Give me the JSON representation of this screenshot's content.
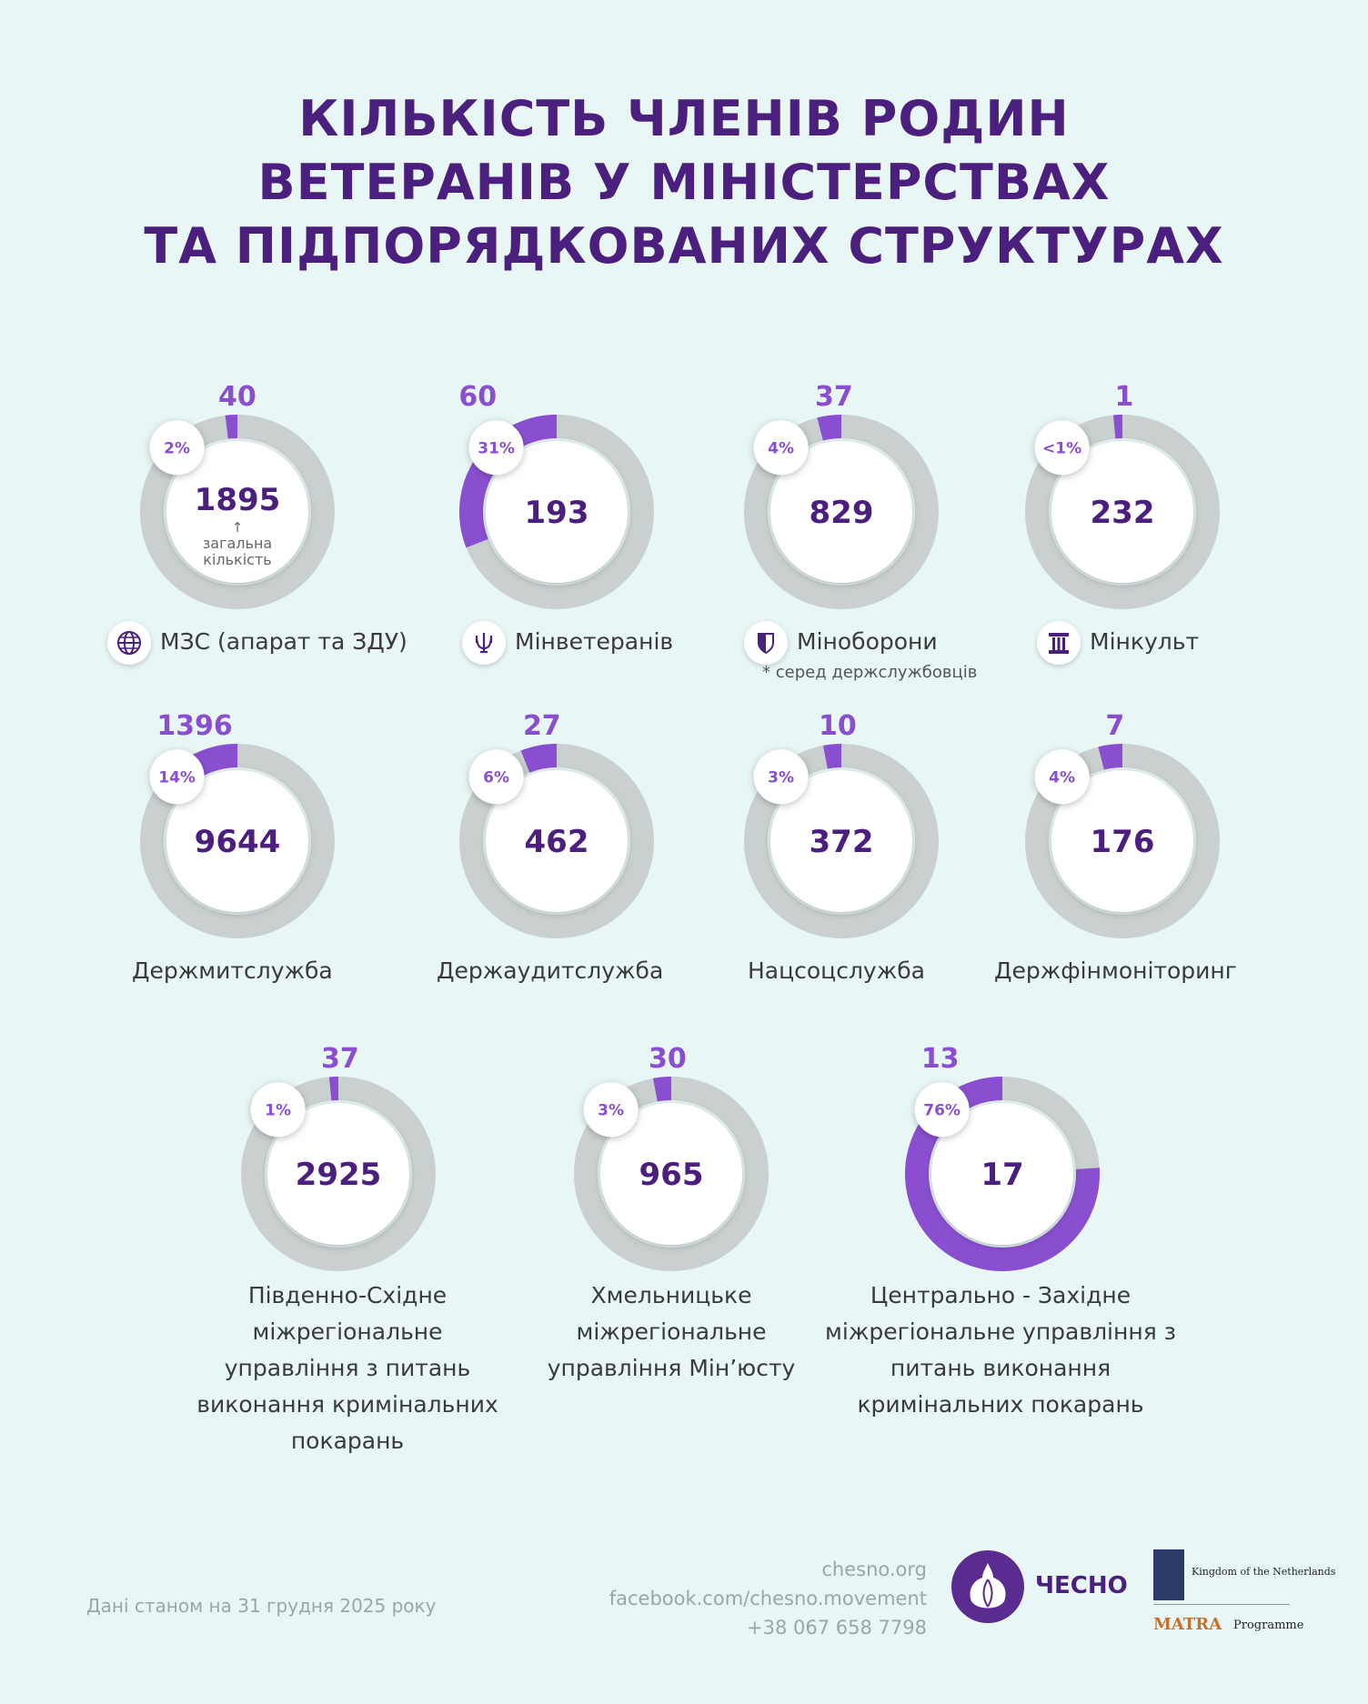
{
  "title": {
    "line1": "КІЛЬКІСТЬ ЧЛЕНІВ РОДИН",
    "line2": "ВЕТЕРАНІВ У МІНІСТЕРСТВАХ",
    "line3": "ТА ПІДПОРЯДКОВАНИХ СТРУКТУРАХ"
  },
  "colors": {
    "accent": "#8a4fd0",
    "track": "#c9d0cf",
    "dark": "#4b1f7d",
    "background": "#e8f6f5"
  },
  "center_note": "загальна кількість",
  "total_arrow": "↑",
  "chart_data": {
    "type": "donut",
    "title": "КІЛЬКІСТЬ ЧЛЕНІВ РОДИН ВЕТЕРАНІВ У МІНІСТЕРСТВАХ ТА ПІДПОРЯДКОВАНИХ СТРУКТУРАХ",
    "series": [
      {
        "name": "МЗС (апарат та ЗДУ)",
        "total": 1895,
        "value": 40,
        "percent": 2,
        "percent_label": "2%",
        "icon": "globe-icon"
      },
      {
        "name": "Мінветеранів",
        "total": 193,
        "value": 60,
        "percent": 31,
        "percent_label": "31%",
        "icon": "trident-icon"
      },
      {
        "name": "Міноборони",
        "total": 829,
        "value": 37,
        "percent": 4,
        "percent_label": "4%",
        "icon": "shield-icon",
        "note": "* серед держслужбовців"
      },
      {
        "name": "Мінкульт",
        "total": 232,
        "value": 1,
        "percent": 0.4,
        "percent_label": "<1%",
        "icon": "column-icon"
      },
      {
        "name": "Держмитслужба",
        "total": 9644,
        "value": 1396,
        "percent": 14,
        "percent_label": "14%"
      },
      {
        "name": "Держаудитслужба",
        "total": 462,
        "value": 27,
        "percent": 6,
        "percent_label": "6%"
      },
      {
        "name": "Нацсоцслужба",
        "total": 372,
        "value": 10,
        "percent": 3,
        "percent_label": "3%"
      },
      {
        "name": "Держфінмоніторинг",
        "total": 176,
        "value": 7,
        "percent": 4,
        "percent_label": "4%"
      },
      {
        "name": "Південно-Східне міжрегіональне управління з питань виконання кримінальних покарань",
        "name_lines": [
          "Південно-Східне",
          "міжрегіональне",
          "управління з питань",
          "виконання кримінальних",
          "покарань"
        ],
        "total": 2925,
        "value": 37,
        "percent": 1,
        "percent_label": "1%"
      },
      {
        "name": "Хмельницьке міжрегіональне управління Мін’юсту",
        "name_lines": [
          "Хмельницьке",
          "міжрегіональне",
          "управління Мін’юсту"
        ],
        "total": 965,
        "value": 30,
        "percent": 3,
        "percent_label": "3%"
      },
      {
        "name": "Центрально - Західне міжрегіональне управління з питань виконання кримінальних покарань",
        "name_lines": [
          "Центрально - Західне",
          "міжрегіональне управління з",
          "питань виконання",
          "кримінальних покарань"
        ],
        "total": 17,
        "value": 13,
        "percent": 76,
        "percent_label": "76%"
      }
    ]
  },
  "footer": {
    "date_note": "Дані станом на 31 грудня 2025 року",
    "site": "chesno.org",
    "facebook": "facebook.com/chesno.movement",
    "phone": "+38 067 658 7798",
    "chesno_brand": "ЧЕСНО",
    "nl_kingdom": "Kingdom of the Netherlands",
    "matra": "MATRA",
    "programme": "Programme"
  }
}
